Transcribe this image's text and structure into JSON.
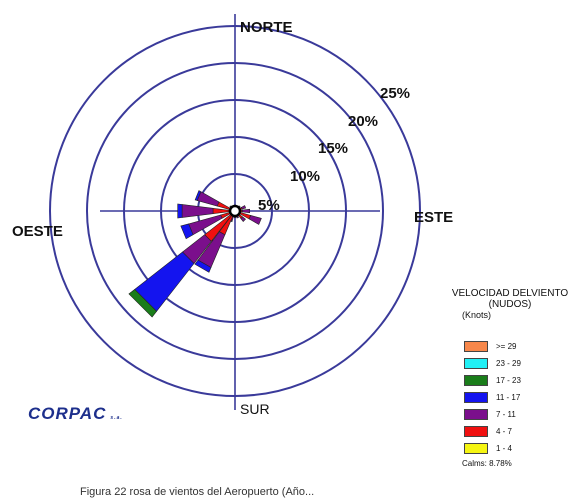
{
  "chart_data": {
    "type": "wind-rose",
    "directions": {
      "north": "NORTE",
      "south": "SUR",
      "east": "ESTE",
      "west": "OESTE"
    },
    "rings": [
      "5%",
      "10%",
      "15%",
      "20%",
      "25%"
    ],
    "legend": {
      "title_line1": "VELOCIDAD DELVIENTO",
      "title_line2": "(NUDOS)",
      "unit": "(Knots)",
      "calms": "Calms: 8.78%",
      "bins": [
        {
          "label": ">= 29",
          "color": "#f7874a"
        },
        {
          "label": "23 - 29",
          "color": "#21f0f5"
        },
        {
          "label": "17 - 23",
          "color": "#1a7d1a"
        },
        {
          "label": "11 - 17",
          "color": "#1414ef"
        },
        {
          "label": "7 - 11",
          "color": "#7b0f8c"
        },
        {
          "label": "4 - 7",
          "color": "#f01010"
        },
        {
          "label": "1 - 4",
          "color": "#f5f512"
        }
      ]
    },
    "petal_note": "cumulative percent frequency per direction for bins 1-4, 4-7, 7-11, 11-17, 17-23",
    "petals": [
      {
        "dir_deg": 0,
        "cum": [
          0.2,
          0.6,
          0.8,
          0.8,
          0.8
        ]
      },
      {
        "dir_deg": 22.5,
        "cum": [
          0.2,
          0.5,
          0.7,
          0.7,
          0.7
        ]
      },
      {
        "dir_deg": 45,
        "cum": [
          0.2,
          0.6,
          0.9,
          0.9,
          0.9
        ]
      },
      {
        "dir_deg": 67.5,
        "cum": [
          0.2,
          1.0,
          1.5,
          1.5,
          1.5
        ]
      },
      {
        "dir_deg": 90,
        "cum": [
          0.2,
          1.0,
          2.0,
          2.0,
          2.0
        ]
      },
      {
        "dir_deg": 112.5,
        "cum": [
          0.2,
          2.2,
          3.7,
          3.7,
          3.7
        ]
      },
      {
        "dir_deg": 135,
        "cum": [
          0.2,
          1.3,
          1.8,
          1.8,
          1.8
        ]
      },
      {
        "dir_deg": 157.5,
        "cum": [
          0.2,
          0.7,
          1.0,
          1.0,
          1.0
        ]
      },
      {
        "dir_deg": 180,
        "cum": [
          0.2,
          0.6,
          0.9,
          0.9,
          0.9
        ]
      },
      {
        "dir_deg": 202.5,
        "cum": [
          0.2,
          0.8,
          1.4,
          1.5,
          1.5
        ]
      },
      {
        "dir_deg": 210,
        "cum": [
          0.3,
          3.5,
          8.3,
          9.0,
          9.0
        ]
      },
      {
        "dir_deg": 225,
        "cum": [
          0.3,
          5.2,
          9.0,
          17.2,
          18.2
        ]
      },
      {
        "dir_deg": 247.5,
        "cum": [
          0.2,
          2.0,
          6.5,
          7.6,
          7.6
        ]
      },
      {
        "dir_deg": 270,
        "cum": [
          0.2,
          3.0,
          7.2,
          7.8,
          7.8
        ]
      },
      {
        "dir_deg": 292.5,
        "cum": [
          0.2,
          2.5,
          5.3,
          5.6,
          5.6
        ]
      },
      {
        "dir_deg": 315,
        "cum": [
          0.2,
          0.6,
          0.9,
          0.9,
          0.9
        ]
      },
      {
        "dir_deg": 337.5,
        "cum": [
          0.2,
          0.5,
          0.7,
          0.7,
          0.7
        ]
      }
    ]
  },
  "logo": {
    "text": "CORPAC",
    "suffix": "s.a."
  },
  "caption": "Figura 22 rosa de vientos del Aeropuerto (Año..."
}
